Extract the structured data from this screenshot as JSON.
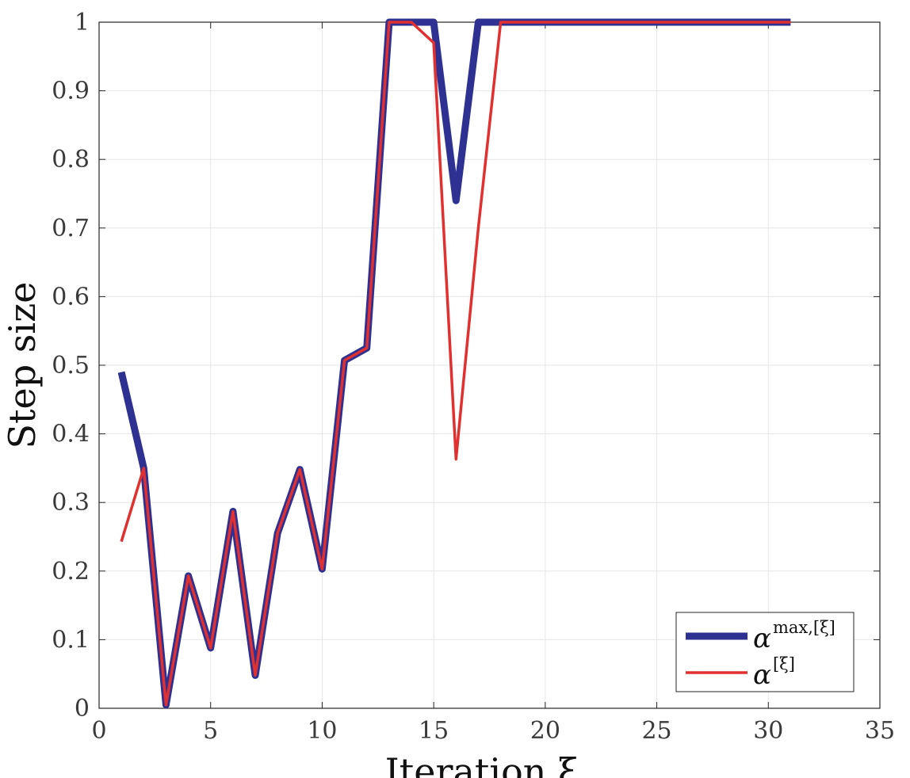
{
  "chart_data": {
    "type": "line",
    "title": "",
    "xlabel": "Iteration ξ",
    "ylabel": "Step size",
    "xlim": [
      0,
      35
    ],
    "ylim": [
      0,
      1
    ],
    "xticks": [
      0,
      5,
      10,
      15,
      20,
      25,
      30,
      35
    ],
    "yticks": [
      0,
      0.1,
      0.2,
      0.3,
      0.4,
      0.5,
      0.6,
      0.7,
      0.8,
      0.9,
      1
    ],
    "xtick_labels": [
      "0",
      "5",
      "10",
      "15",
      "20",
      "25",
      "30",
      "35"
    ],
    "ytick_labels": [
      "0",
      "0.1",
      "0.2",
      "0.3",
      "0.4",
      "0.5",
      "0.6",
      "0.7",
      "0.8",
      "0.9",
      "1"
    ],
    "grid": true,
    "legend_position": "bottom-right",
    "series": [
      {
        "name": "α^{max,[ξ]}",
        "label_base": "α",
        "label_sup": "max,[ξ]",
        "color": "#2e3192",
        "x": [
          1,
          2,
          3,
          4,
          5,
          6,
          7,
          8,
          9,
          10,
          11,
          12,
          13,
          14,
          15,
          16,
          17,
          18,
          19,
          20,
          21,
          22,
          23,
          24,
          25,
          26,
          27,
          28,
          29,
          30,
          31
        ],
        "values": [
          0.49,
          0.35,
          0.005,
          0.193,
          0.088,
          0.287,
          0.048,
          0.255,
          0.348,
          0.203,
          0.507,
          0.525,
          1,
          1,
          1,
          0.74,
          1,
          1,
          1,
          1,
          1,
          1,
          1,
          1,
          1,
          1,
          1,
          1,
          1,
          1,
          1
        ]
      },
      {
        "name": "α^{[ξ]}",
        "label_base": "α",
        "label_sup": "[ξ]",
        "color": "#e03030",
        "x": [
          1,
          2,
          3,
          4,
          5,
          6,
          7,
          8,
          9,
          10,
          11,
          12,
          13,
          14,
          15,
          16,
          17,
          18,
          19,
          20,
          21,
          22,
          23,
          24,
          25,
          26,
          27,
          28,
          29,
          30,
          31
        ],
        "values": [
          0.243,
          0.35,
          0.005,
          0.193,
          0.088,
          0.287,
          0.048,
          0.255,
          0.348,
          0.203,
          0.507,
          0.525,
          1,
          1,
          0.97,
          0.363,
          0.7,
          1,
          1,
          1,
          1,
          1,
          1,
          1,
          1,
          1,
          1,
          1,
          1,
          1,
          1
        ]
      }
    ]
  }
}
